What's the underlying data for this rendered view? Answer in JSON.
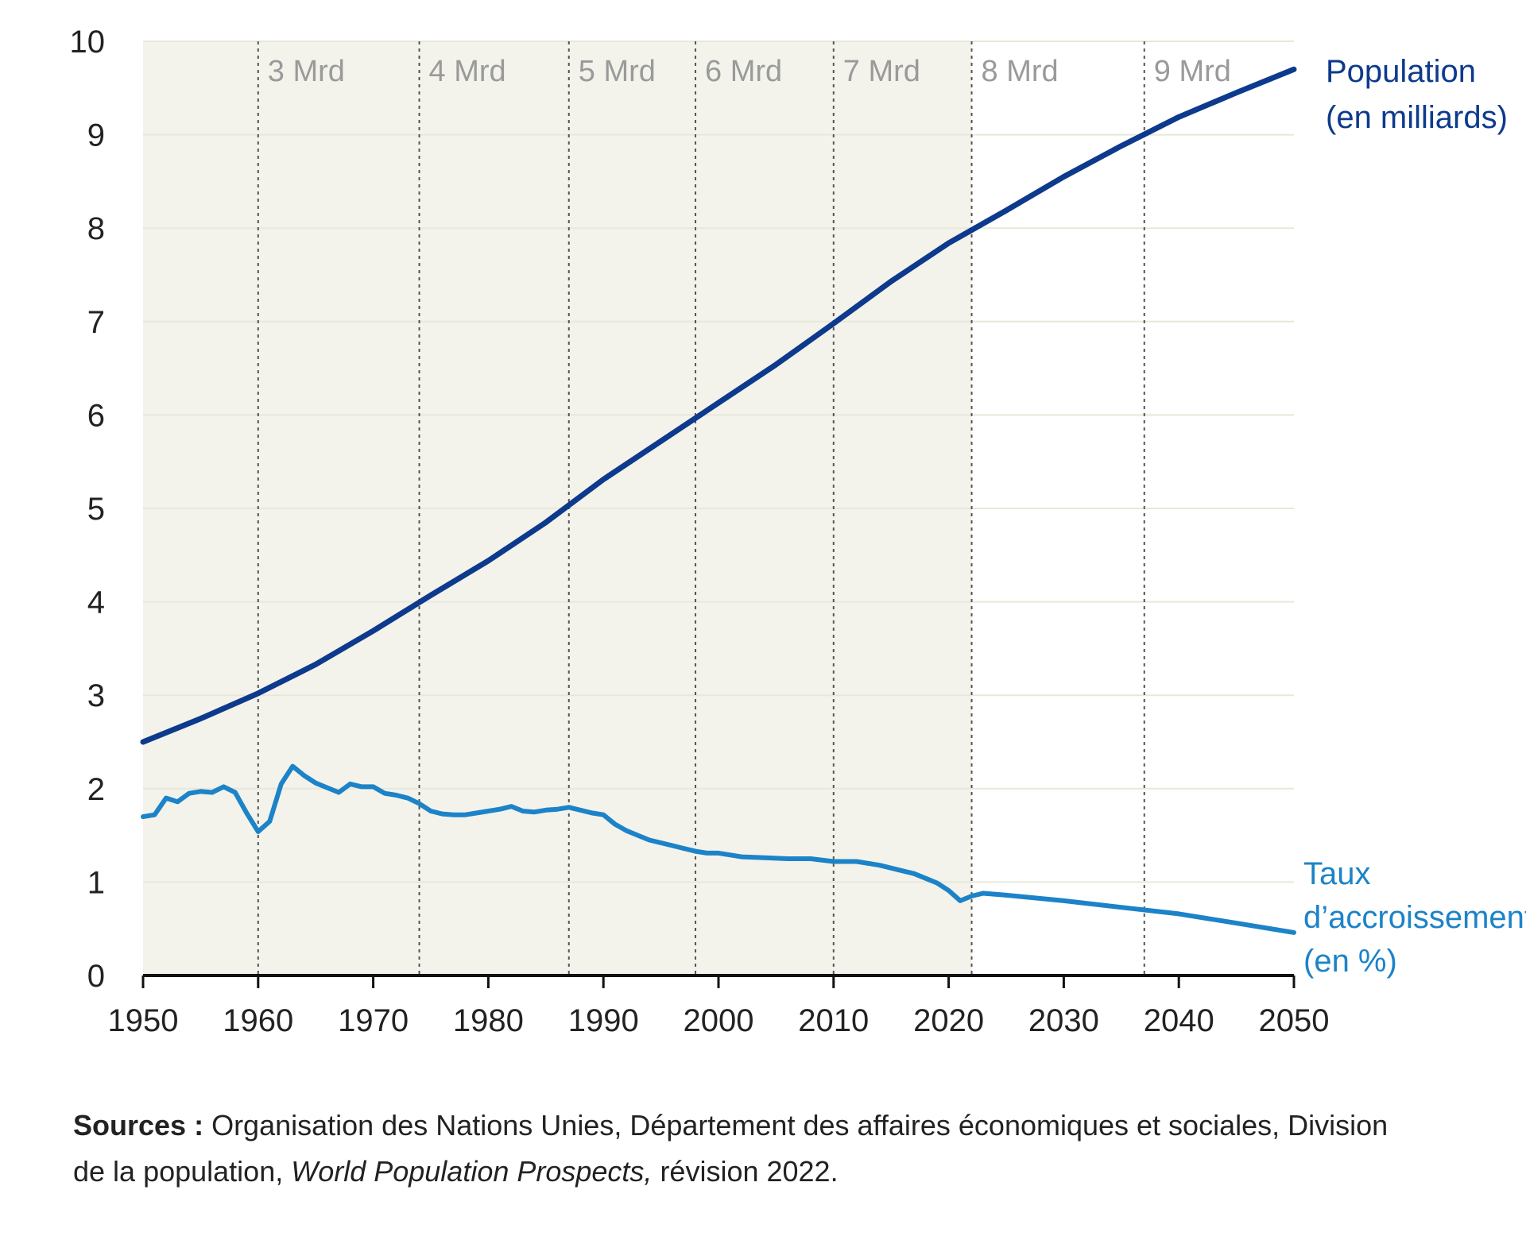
{
  "chart_data": {
    "type": "line",
    "xlim": [
      1950,
      2050
    ],
    "ylim": [
      0,
      10
    ],
    "x_ticks": [
      "1950",
      "1960",
      "1970",
      "1980",
      "1990",
      "2000",
      "2010",
      "2020",
      "2030",
      "2040",
      "2050"
    ],
    "y_ticks": [
      "0",
      "1",
      "2",
      "3",
      "4",
      "5",
      "6",
      "7",
      "8",
      "9",
      "10"
    ],
    "grid": "horizontal",
    "shaded_period": [
      1950,
      2022
    ],
    "milestones": [
      {
        "label": "3 Mrd",
        "year": 1960
      },
      {
        "label": "4 Mrd",
        "year": 1974
      },
      {
        "label": "5 Mrd",
        "year": 1987
      },
      {
        "label": "6 Mrd",
        "year": 1998
      },
      {
        "label": "7 Mrd",
        "year": 2010
      },
      {
        "label": "8 Mrd",
        "year": 2022
      },
      {
        "label": "9 Mrd",
        "year": 2037
      }
    ],
    "series": [
      {
        "name_lines": [
          "Population",
          "(en milliards)"
        ],
        "color": "#0d3a8c",
        "x": [
          1950,
          1955,
          1960,
          1965,
          1970,
          1975,
          1980,
          1985,
          1990,
          1995,
          2000,
          2005,
          2010,
          2015,
          2020,
          2022,
          2025,
          2030,
          2035,
          2040,
          2045,
          2050
        ],
        "values": [
          2.5,
          2.75,
          3.02,
          3.33,
          3.69,
          4.07,
          4.44,
          4.85,
          5.31,
          5.72,
          6.13,
          6.54,
          6.98,
          7.43,
          7.84,
          7.98,
          8.19,
          8.55,
          8.88,
          9.19,
          9.45,
          9.7
        ]
      },
      {
        "name_lines": [
          "Taux",
          "d’accroissement",
          "(en %)"
        ],
        "color": "#1c83c8",
        "x": [
          1950,
          1951,
          1952,
          1953,
          1954,
          1955,
          1956,
          1957,
          1958,
          1959,
          1960,
          1961,
          1962,
          1963,
          1964,
          1965,
          1966,
          1967,
          1968,
          1969,
          1970,
          1971,
          1972,
          1973,
          1974,
          1975,
          1976,
          1977,
          1978,
          1979,
          1980,
          1981,
          1982,
          1983,
          1984,
          1985,
          1986,
          1987,
          1988,
          1989,
          1990,
          1991,
          1992,
          1993,
          1994,
          1995,
          1996,
          1997,
          1998,
          1999,
          2000,
          2002,
          2004,
          2006,
          2008,
          2010,
          2012,
          2014,
          2016,
          2017,
          2018,
          2019,
          2020,
          2021,
          2022,
          2023,
          2025,
          2030,
          2035,
          2040,
          2045,
          2050
        ],
        "values": [
          1.7,
          1.72,
          1.9,
          1.86,
          1.95,
          1.97,
          1.96,
          2.02,
          1.96,
          1.74,
          1.54,
          1.65,
          2.05,
          2.24,
          2.14,
          2.06,
          2.01,
          1.96,
          2.05,
          2.02,
          2.02,
          1.95,
          1.93,
          1.9,
          1.84,
          1.76,
          1.73,
          1.72,
          1.72,
          1.74,
          1.76,
          1.78,
          1.81,
          1.76,
          1.75,
          1.77,
          1.78,
          1.8,
          1.77,
          1.74,
          1.72,
          1.62,
          1.55,
          1.5,
          1.45,
          1.42,
          1.39,
          1.36,
          1.33,
          1.31,
          1.31,
          1.27,
          1.26,
          1.25,
          1.25,
          1.22,
          1.22,
          1.18,
          1.12,
          1.09,
          1.04,
          0.99,
          0.91,
          0.8,
          0.85,
          0.88,
          0.86,
          0.8,
          0.73,
          0.66,
          0.56,
          0.46
        ]
      }
    ]
  },
  "source": {
    "label": "Sources :",
    "text1": " Organisation des Nations Unies, Département des affaires économiques et sociales, Division de la population, ",
    "title": "World Population Prospects,",
    "text2": " révision 2022."
  }
}
